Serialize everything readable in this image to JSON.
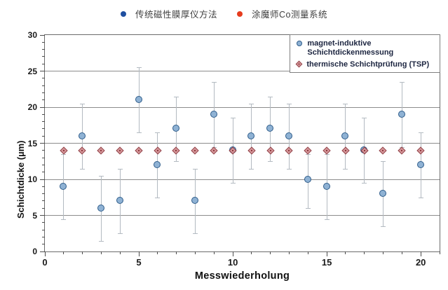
{
  "top_legend": {
    "items": [
      {
        "label": "传统磁性膜厚仪方法",
        "color": "#1f4fa0",
        "marker": "circle-dot"
      },
      {
        "label": "涂魔师Co测量系统",
        "color": "#e63c1e",
        "marker": "circle-dot"
      }
    ]
  },
  "chart_data": {
    "type": "scatter",
    "title": "",
    "xlabel": "Messwiederholung",
    "ylabel": "Schichtdicke (µm)",
    "xlim": [
      0,
      21
    ],
    "ylim": [
      0,
      30
    ],
    "x_major_ticks": [
      0,
      5,
      10,
      15,
      20
    ],
    "y_major_ticks": [
      0,
      5,
      10,
      15,
      20,
      25,
      30
    ],
    "gridlines_y": [
      5,
      10,
      15,
      20,
      25
    ],
    "grid": "horizontal-only",
    "x": [
      1,
      2,
      3,
      4,
      5,
      6,
      7,
      8,
      9,
      10,
      11,
      12,
      13,
      14,
      15,
      16,
      17,
      18,
      19,
      20
    ],
    "series": [
      {
        "name": "magnet-induktive Schichtdickenmessung",
        "marker": "circle",
        "marker_fill": "#8fb2d4",
        "marker_border": "#2e5c8a",
        "errorbar_color": "#b3bac1",
        "values": [
          9,
          16,
          6,
          7,
          21,
          12,
          17,
          7,
          19,
          14,
          16,
          17,
          16,
          10,
          9,
          16,
          14,
          8,
          19,
          12
        ],
        "error_low": [
          4.5,
          11.5,
          1.5,
          2.5,
          16.5,
          7.5,
          12.5,
          2.5,
          14.5,
          9.5,
          11.5,
          12.5,
          11.5,
          6.0,
          4.5,
          11.5,
          9.5,
          3.5,
          14.5,
          7.5
        ],
        "error_high": [
          13.5,
          20.5,
          10.5,
          11.5,
          25.5,
          16.5,
          21.5,
          11.5,
          23.5,
          18.5,
          20.5,
          21.5,
          20.5,
          13.5,
          13.5,
          20.5,
          18.5,
          12.5,
          23.5,
          16.5
        ]
      },
      {
        "name": "thermische Schichtprüfung (TSP)",
        "marker": "diamond",
        "marker_fill": "#d49497",
        "marker_border": "#8e3a40",
        "values": [
          14,
          14,
          14,
          14,
          14,
          14,
          14,
          14,
          14,
          14,
          14,
          14,
          14,
          14,
          14,
          14,
          14,
          14,
          14,
          14
        ]
      }
    ],
    "legend": {
      "position": "top-right",
      "entries": [
        {
          "label": "magnet-induktive\nSchichtdickenmessung",
          "marker": "circle"
        },
        {
          "label": "thermische Schichtprüfung (TSP)",
          "marker": "diamond"
        }
      ]
    }
  }
}
